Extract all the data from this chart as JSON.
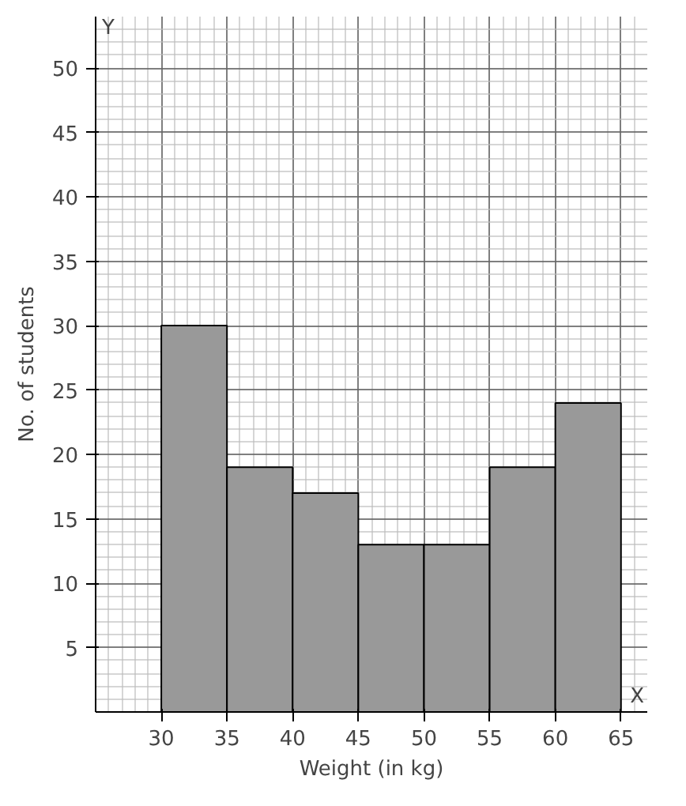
{
  "chart_data": {
    "type": "histogram",
    "xlabel": "Weight (in kg)",
    "ylabel": "No. of students",
    "bins": [
      30,
      35,
      40,
      45,
      50,
      55,
      60,
      65
    ],
    "values": [
      30,
      19,
      17,
      13,
      13,
      19,
      24
    ],
    "color": "#999999",
    "xlim": [
      25,
      67
    ],
    "ylim": [
      0,
      54
    ],
    "xticks": [
      30,
      35,
      40,
      45,
      50,
      55,
      60,
      65
    ],
    "yticks": [
      5,
      10,
      15,
      20,
      25,
      30,
      35,
      40,
      45,
      50
    ],
    "grid": true,
    "annotations": [
      "Y",
      "X"
    ]
  }
}
